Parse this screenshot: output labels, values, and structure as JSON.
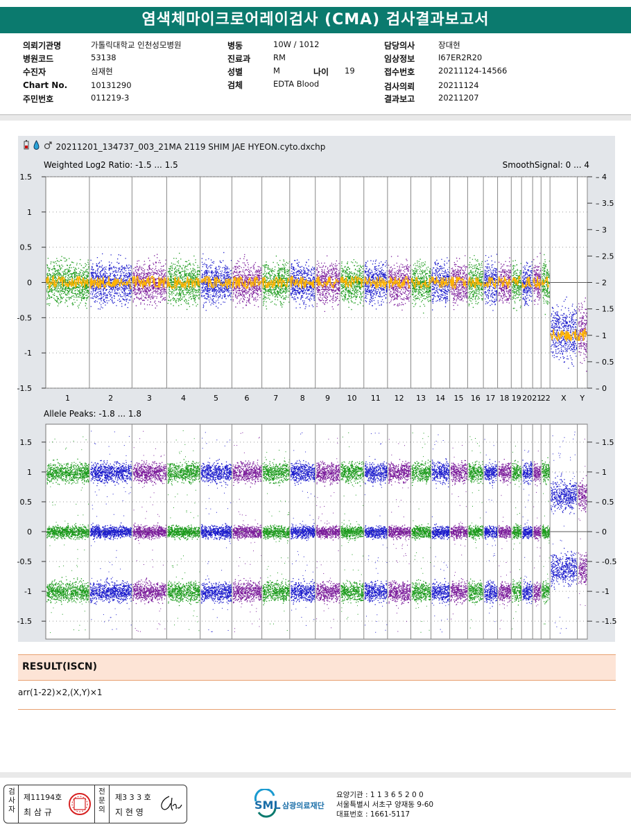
{
  "report_title": "염색체마이크로어레이검사 (CMA) 검사결과보고서",
  "info": {
    "col1": [
      {
        "label": "의뢰기관명",
        "value": "가톨릭대학교 인천성모병원"
      },
      {
        "label": "병원코드",
        "value": "53138"
      },
      {
        "label": "수진자",
        "value": "심재현"
      },
      {
        "label": "Chart No.",
        "value": "10131290"
      },
      {
        "label": "주민번호",
        "value": "011219-3"
      }
    ],
    "col2": [
      {
        "label": "병동",
        "value": "10W / 1012"
      },
      {
        "label": "진료과",
        "value": "RM"
      },
      {
        "label": "성별",
        "value": "M"
      },
      {
        "label": "검체",
        "value": "EDTA Blood"
      }
    ],
    "age_label": "나이",
    "age_value": "19",
    "col3": [
      {
        "label": "담당의사",
        "value": "장대현"
      },
      {
        "label": "임상정보",
        "value": "I67ER2R20"
      },
      {
        "label": "접수번호",
        "value": "20211124-14566"
      },
      {
        "label": "검사의뢰",
        "value": "20211124"
      },
      {
        "label": "결과보고",
        "value": "20211207"
      }
    ]
  },
  "plot": {
    "filename": "20211201_134737_003_21MA 2119 SHIM JAE HYEON.cyto.dxchp",
    "icon_names": [
      "battery-icon",
      "drop-icon",
      "male-icon"
    ]
  },
  "chart_data": [
    {
      "type": "scatter",
      "title": "Weighted Log2 Ratio: -1.5 ... 1.5",
      "right_title": "SmoothSignal: 0 ... 4",
      "ylim": [
        -1.5,
        1.5
      ],
      "y2lim": [
        0,
        4
      ],
      "yticks": [
        "1.5",
        "1",
        "0.5",
        "0",
        "-0.5",
        "-1",
        "-1.5"
      ],
      "y2ticks": [
        "4",
        "3.5",
        "3",
        "2.5",
        "2",
        "1.5",
        "1",
        "0.5",
        "0"
      ],
      "categories": [
        "1",
        "2",
        "3",
        "4",
        "5",
        "6",
        "7",
        "8",
        "9",
        "10",
        "11",
        "12",
        "13",
        "14",
        "15",
        "16",
        "17",
        "18",
        "19",
        "20",
        "21",
        "22",
        "X",
        "Y"
      ],
      "smooth_signal": [
        2,
        2,
        2,
        2,
        2,
        2,
        2,
        2,
        2,
        2,
        2,
        2,
        2,
        2,
        2,
        2,
        2,
        2,
        2,
        2,
        2,
        2,
        1,
        1
      ],
      "grid": true,
      "colors": [
        "#1a9a1a",
        "#1a1acc",
        "#7a1a9a"
      ],
      "smooth_color": "#ffb300"
    },
    {
      "type": "scatter",
      "title": "Allele Peaks: -1.8 ... 1.8",
      "ylim": [
        -1.8,
        1.8
      ],
      "yticks": [
        "1.5",
        "1",
        "0.5",
        "0",
        "-0.5",
        "-1",
        "-1.5"
      ],
      "y2ticks": [
        "1.5",
        "1",
        "0.5",
        "0",
        "-0.5",
        "-1",
        "-1.5"
      ],
      "categories": [
        "1",
        "2",
        "3",
        "4",
        "5",
        "6",
        "7",
        "8",
        "9",
        "10",
        "11",
        "12",
        "13",
        "14",
        "15",
        "16",
        "17",
        "18",
        "19",
        "20",
        "21",
        "22",
        "X",
        "Y"
      ],
      "peak_levels": [
        1,
        0,
        -1
      ],
      "grid": true
    }
  ],
  "result": {
    "heading": "RESULT(ISCN)",
    "iscn": "arr(1-22)×2,(X,Y)×1"
  },
  "footer": {
    "stamp1": {
      "side": "검사자",
      "number": "제11194호",
      "name": "최 삼 규"
    },
    "stamp2": {
      "side": "전문의",
      "number": "제3 3 3 호",
      "name": "지 현 영"
    },
    "logo_text": "SML",
    "org_name": "삼광의료재단",
    "lines": [
      "요양기관 : 1 1 3 6 5 2 0 0",
      "서울특별시 서초구 양재동 9-60",
      "대표번호 : 1661-5117"
    ]
  }
}
